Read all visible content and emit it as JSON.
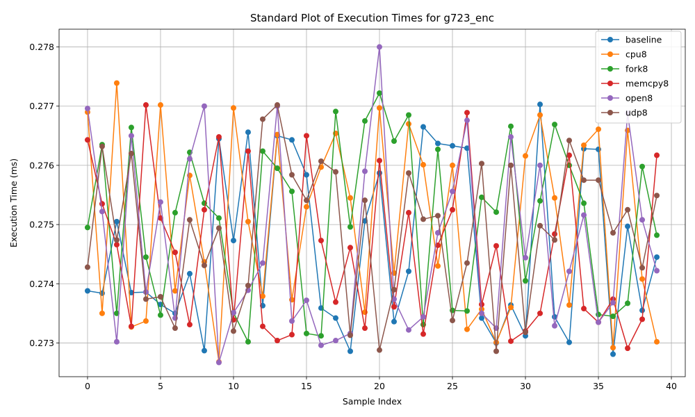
{
  "chart_data": {
    "type": "line",
    "title": "Standard Plot of Execution Times for g723_enc",
    "xlabel": "Sample Index",
    "ylabel": "Execution Time (ms)",
    "xlim": [
      -1.95,
      40.95
    ],
    "ylim": [
      0.27243,
      0.2783
    ],
    "xticks": [
      0,
      5,
      10,
      15,
      20,
      25,
      30,
      35,
      40
    ],
    "xtick_labels": [
      "0",
      "5",
      "10",
      "15",
      "20",
      "25",
      "30",
      "35",
      "40"
    ],
    "yticks": [
      0.273,
      0.274,
      0.275,
      0.276,
      0.277,
      0.278
    ],
    "ytick_labels": [
      "0.273",
      "0.274",
      "0.275",
      "0.276",
      "0.277",
      "0.278"
    ],
    "grid": true,
    "legend_position": "top-right",
    "marker": "circle",
    "x": [
      0,
      1,
      2,
      3,
      4,
      5,
      6,
      7,
      8,
      9,
      10,
      11,
      12,
      13,
      14,
      15,
      16,
      17,
      18,
      19,
      20,
      21,
      22,
      23,
      24,
      25,
      26,
      27,
      28,
      29,
      30,
      31,
      32,
      33,
      34,
      35,
      36,
      37,
      38,
      39
    ],
    "series": [
      {
        "name": "baseline",
        "color": "#1f77b4",
        "values": [
          0.27388,
          0.27384,
          0.27505,
          0.27385,
          0.27386,
          0.27365,
          0.2735,
          0.27417,
          0.27287,
          0.27645,
          0.27473,
          0.27656,
          0.27363,
          0.2765,
          0.27643,
          0.27584,
          0.27359,
          0.27342,
          0.27286,
          0.27506,
          0.27587,
          0.27336,
          0.27421,
          0.27665,
          0.27637,
          0.27633,
          0.27629,
          0.27342,
          0.273,
          0.27364,
          0.27312,
          0.27703,
          0.27344,
          0.27301,
          0.27628,
          0.27627,
          0.27281,
          0.27497,
          0.27355,
          0.27445
        ]
      },
      {
        "name": "cpu8",
        "color": "#ff7f0e",
        "values": [
          0.2769,
          0.2735,
          0.27739,
          0.27327,
          0.27337,
          0.27702,
          0.27388,
          0.27583,
          0.27437,
          0.27268,
          0.27697,
          0.27505,
          0.27379,
          0.27652,
          0.27373,
          0.2753,
          0.27597,
          0.27654,
          0.27545,
          0.27352,
          0.27697,
          0.27418,
          0.2767,
          0.27601,
          0.2743,
          0.276,
          0.27323,
          0.27357,
          0.27301,
          0.2736,
          0.27616,
          0.27685,
          0.27545,
          0.27364,
          0.27634,
          0.27661,
          0.27292,
          0.27659,
          0.27408,
          0.27302
        ]
      },
      {
        "name": "fork8",
        "color": "#2ca02c",
        "values": [
          0.27495,
          0.27635,
          0.2735,
          0.27664,
          0.27445,
          0.27347,
          0.2752,
          0.27622,
          0.27536,
          0.27511,
          0.27351,
          0.27302,
          0.27624,
          0.27595,
          0.27556,
          0.27316,
          0.27312,
          0.27691,
          0.27496,
          0.27675,
          0.27722,
          0.27641,
          0.27685,
          0.27331,
          0.27627,
          0.27355,
          0.27354,
          0.27546,
          0.27521,
          0.27666,
          0.27405,
          0.2754,
          0.27669,
          0.276,
          0.27536,
          0.27348,
          0.27345,
          0.27367,
          0.27598,
          0.27482
        ]
      },
      {
        "name": "memcpy8",
        "color": "#d62728",
        "values": [
          0.27643,
          0.27535,
          0.27466,
          0.27328,
          0.27702,
          0.27511,
          0.27453,
          0.27331,
          0.27525,
          0.27648,
          0.27339,
          0.27624,
          0.27328,
          0.27304,
          0.27314,
          0.2765,
          0.27473,
          0.27369,
          0.27461,
          0.27325,
          0.27608,
          0.27361,
          0.2752,
          0.27315,
          0.27465,
          0.27525,
          0.27689,
          0.27365,
          0.27464,
          0.27303,
          0.2732,
          0.2735,
          0.27484,
          0.27617,
          0.27358,
          0.27335,
          0.27374,
          0.27291,
          0.2734,
          0.27617
        ]
      },
      {
        "name": "open8",
        "color": "#9467bd",
        "values": [
          0.27696,
          0.27522,
          0.27302,
          0.2765,
          0.27386,
          0.27538,
          0.27342,
          0.27611,
          0.277,
          0.27267,
          0.27351,
          0.27389,
          0.27435,
          0.277,
          0.27337,
          0.27372,
          0.27296,
          0.27304,
          0.27316,
          0.2759,
          0.278,
          0.27374,
          0.27322,
          0.27344,
          0.27486,
          0.27556,
          0.27676,
          0.2735,
          0.27325,
          0.27648,
          0.27444,
          0.276,
          0.27329,
          0.27421,
          0.27516,
          0.27335,
          0.27368,
          0.27688,
          0.27508,
          0.27422
        ]
      },
      {
        "name": "udp8",
        "color": "#8c564b",
        "values": [
          0.27428,
          0.27632,
          0.27474,
          0.2762,
          0.27374,
          0.27378,
          0.27325,
          0.27508,
          0.27431,
          0.27494,
          0.2732,
          0.27397,
          0.27678,
          0.27702,
          0.27584,
          0.27541,
          0.27607,
          0.27589,
          0.27313,
          0.27541,
          0.27288,
          0.2739,
          0.27587,
          0.27509,
          0.27515,
          0.27338,
          0.27435,
          0.27603,
          0.27286,
          0.276,
          0.27318,
          0.27498,
          0.27474,
          0.27642,
          0.27575,
          0.27575,
          0.27486,
          0.27525,
          0.27427,
          0.27549
        ]
      }
    ]
  }
}
